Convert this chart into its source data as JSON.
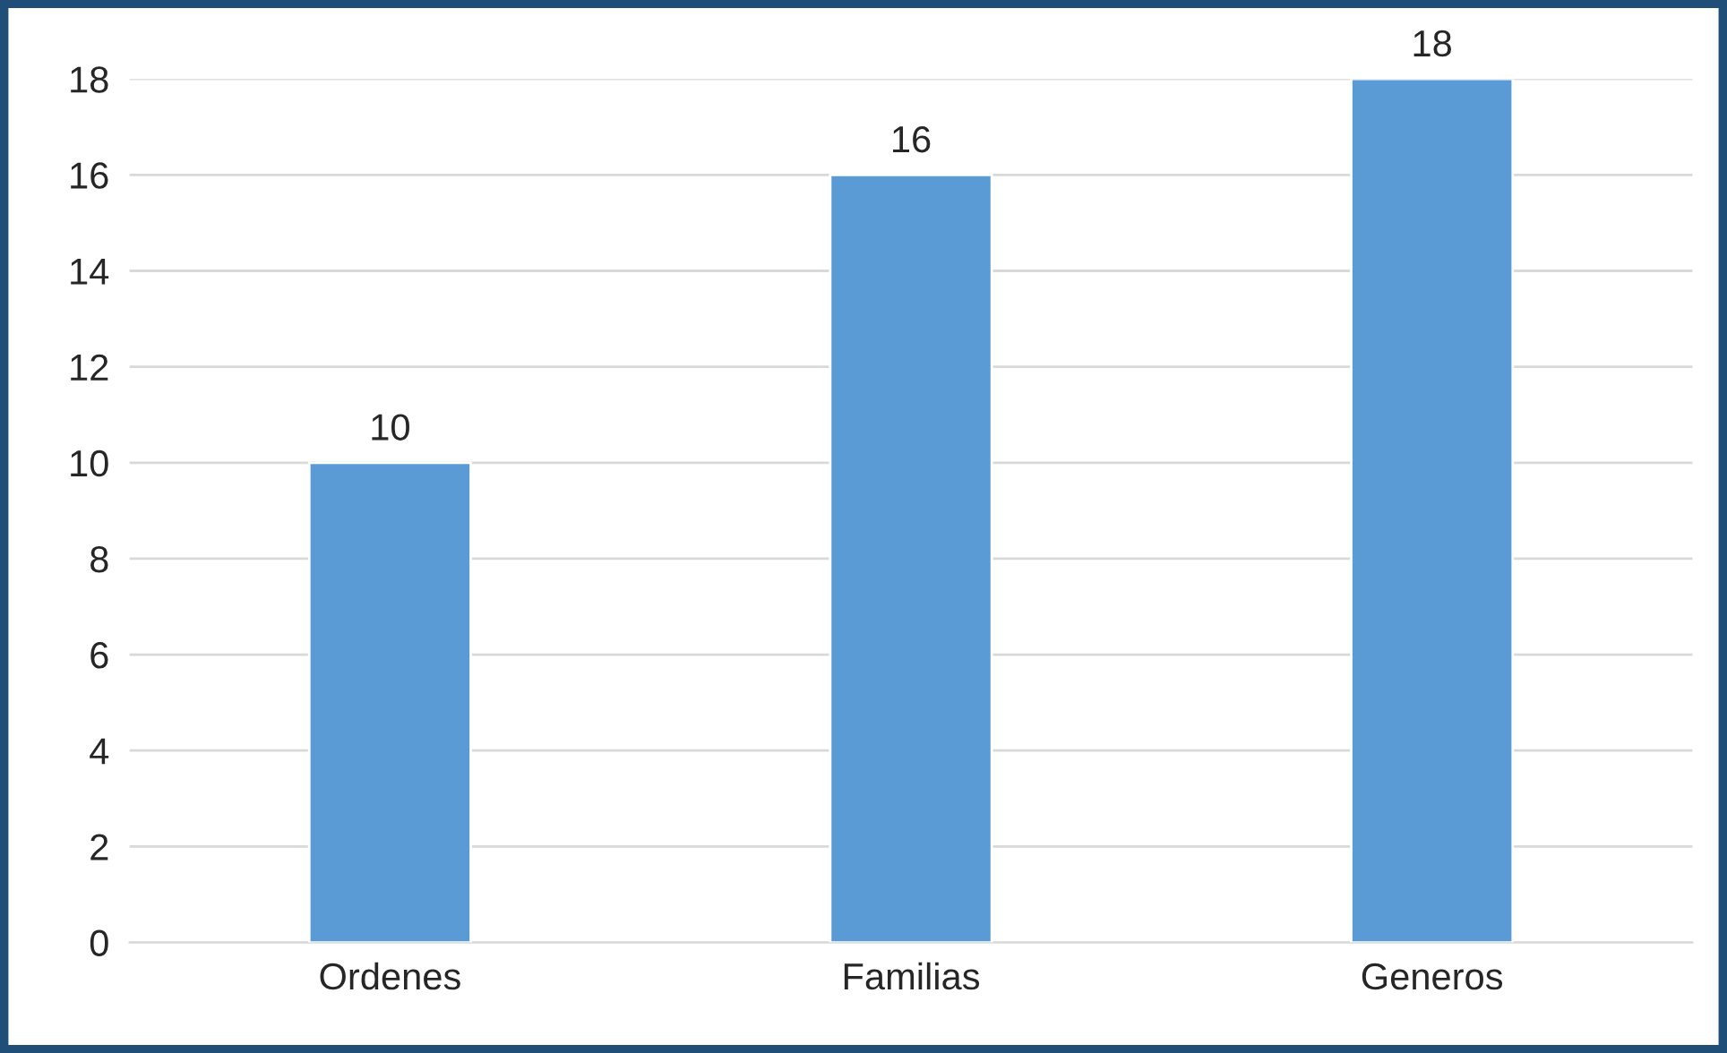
{
  "chart_data": {
    "type": "bar",
    "categories": [
      "Ordenes",
      "Familias",
      "Generos"
    ],
    "values": [
      10,
      16,
      18
    ],
    "color": "#5b9bd5",
    "ylim": [
      0,
      18
    ],
    "yticks": [
      0,
      2,
      4,
      6,
      8,
      10,
      12,
      14,
      16,
      18
    ],
    "grid": "y",
    "data_labels": true
  }
}
